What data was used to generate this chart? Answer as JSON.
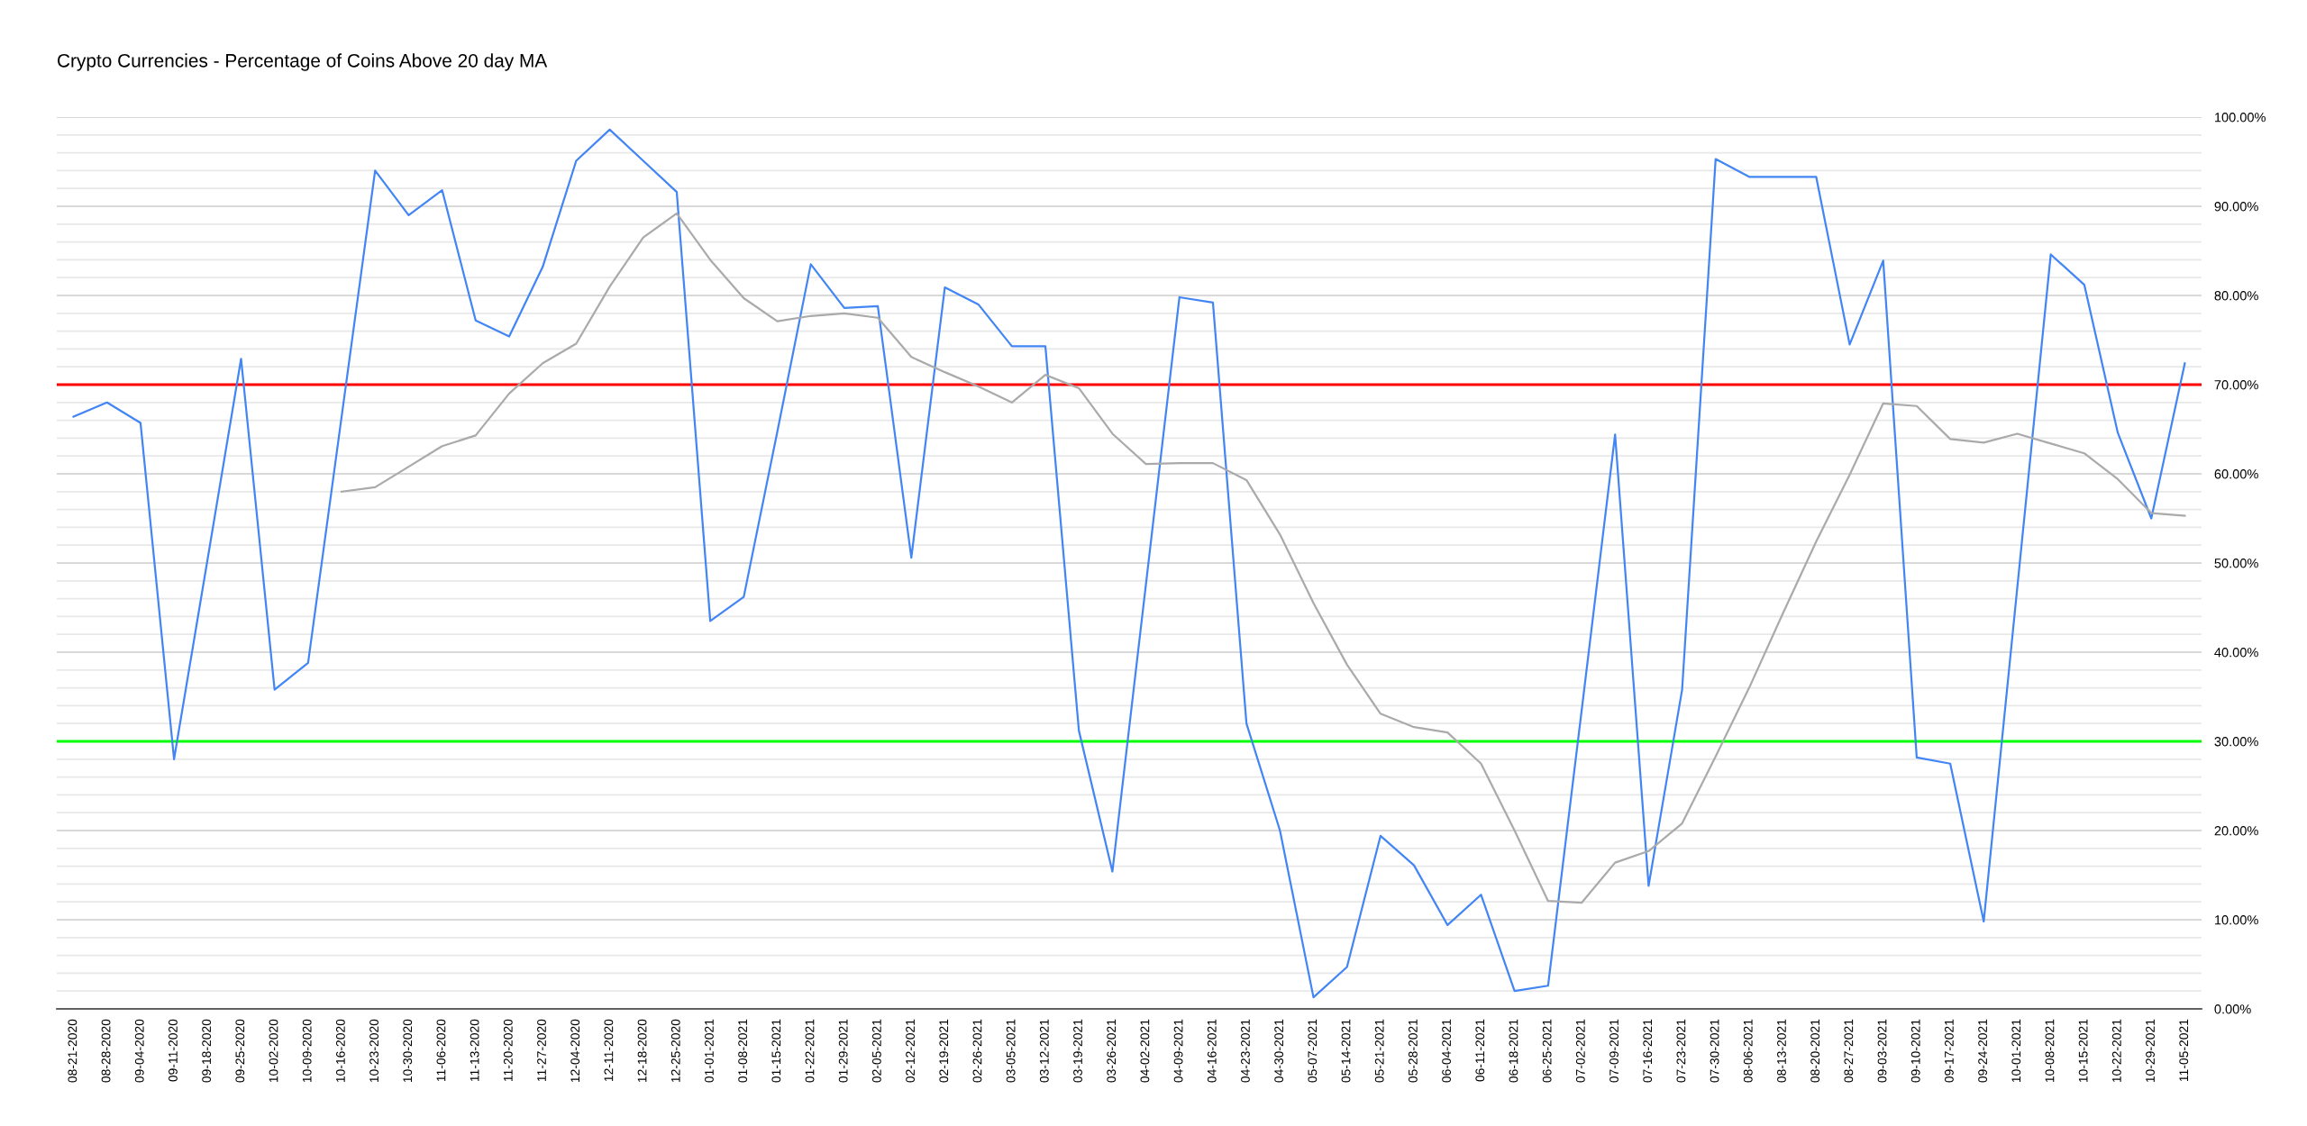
{
  "chart_data": {
    "type": "line",
    "title": "Crypto Currencies - Percentage of Coins Above 20 day MA",
    "categories": [
      "08-21-2020",
      "08-28-2020",
      "09-04-2020",
      "09-11-2020",
      "09-18-2020",
      "09-25-2020",
      "10-02-2020",
      "10-09-2020",
      "10-16-2020",
      "10-23-2020",
      "10-30-2020",
      "11-06-2020",
      "11-13-2020",
      "11-20-2020",
      "11-27-2020",
      "12-04-2020",
      "12-11-2020",
      "12-18-2020",
      "12-25-2020",
      "01-01-2021",
      "01-08-2021",
      "01-15-2021",
      "01-22-2021",
      "01-29-2021",
      "02-05-2021",
      "02-12-2021",
      "02-19-2021",
      "02-26-2021",
      "03-05-2021",
      "03-12-2021",
      "03-19-2021",
      "03-26-2021",
      "04-02-2021",
      "04-09-2021",
      "04-16-2021",
      "04-23-2021",
      "04-30-2021",
      "05-07-2021",
      "05-14-2021",
      "05-21-2021",
      "05-28-2021",
      "06-04-2021",
      "06-11-2021",
      "06-18-2021",
      "06-25-2021",
      "07-02-2021",
      "07-09-2021",
      "07-16-2021",
      "07-23-2021",
      "07-30-2021",
      "08-06-2021",
      "08-13-2021",
      "08-20-2021",
      "08-27-2021",
      "09-03-2021",
      "09-10-2021",
      "09-17-2021",
      "09-24-2021",
      "10-01-2021",
      "10-08-2021",
      "10-15-2021",
      "10-22-2021",
      "10-29-2021",
      "11-05-2021"
    ],
    "series": [
      {
        "color": "#4285f4",
        "values": [
          66.4,
          68.0,
          65.7,
          28.0,
          50.4,
          72.9,
          35.8,
          38.8,
          66.4,
          94.0,
          89.0,
          91.8,
          77.2,
          75.4,
          83.2,
          95.1,
          98.6,
          95.1,
          91.6,
          43.5,
          46.2,
          64.7,
          83.5,
          78.6,
          78.8,
          50.6,
          80.9,
          79.0,
          74.3,
          74.3,
          31.2,
          15.4,
          47.6,
          79.8,
          79.2,
          32.0,
          20.0,
          1.3,
          4.7,
          19.4,
          16.1,
          9.4,
          12.8,
          2.0,
          2.6,
          33.4,
          64.4,
          13.8,
          35.8,
          95.3,
          93.3,
          93.3,
          93.3,
          74.5,
          83.9,
          28.2,
          27.5,
          9.8,
          47.2,
          84.6,
          81.2,
          64.6,
          55.0,
          72.4
        ]
      },
      {
        "color": "#aaaaaa",
        "values": [
          null,
          null,
          null,
          null,
          null,
          null,
          null,
          null,
          58.0,
          58.5,
          60.8,
          63.1,
          64.3,
          69.0,
          72.4,
          74.6,
          81.0,
          86.5,
          89.2,
          84.0,
          79.7,
          77.1,
          77.7,
          78.0,
          77.5,
          73.1,
          71.4,
          69.8,
          68.0,
          71.1,
          69.6,
          64.5,
          61.1,
          61.2,
          61.2,
          59.3,
          53.2,
          45.5,
          38.6,
          33.1,
          31.6,
          31.0,
          27.5,
          20.0,
          12.1,
          11.9,
          16.4,
          17.7,
          20.8,
          28.3,
          36.0,
          44.3,
          52.4,
          59.9,
          67.9,
          67.6,
          63.9,
          63.5,
          64.5,
          63.4,
          62.3,
          59.4,
          55.6,
          55.3
        ]
      }
    ],
    "ylim": [
      0,
      100
    ],
    "yticks": [
      {
        "value": 0,
        "label": "0.00%"
      },
      {
        "value": 2,
        "label": null
      },
      {
        "value": 4,
        "label": null
      },
      {
        "value": 6,
        "label": null
      },
      {
        "value": 8,
        "label": null
      },
      {
        "value": 10,
        "label": "10.00%"
      },
      {
        "value": 12,
        "label": null
      },
      {
        "value": 14,
        "label": null
      },
      {
        "value": 16,
        "label": null
      },
      {
        "value": 18,
        "label": null
      },
      {
        "value": 20,
        "label": "20.00%"
      },
      {
        "value": 22,
        "label": null
      },
      {
        "value": 24,
        "label": null
      },
      {
        "value": 26,
        "label": null
      },
      {
        "value": 28,
        "label": null
      },
      {
        "value": 30,
        "label": "30.00%"
      },
      {
        "value": 32,
        "label": null
      },
      {
        "value": 34,
        "label": null
      },
      {
        "value": 36,
        "label": null
      },
      {
        "value": 38,
        "label": null
      },
      {
        "value": 40,
        "label": "40.00%"
      },
      {
        "value": 42,
        "label": null
      },
      {
        "value": 44,
        "label": null
      },
      {
        "value": 46,
        "label": null
      },
      {
        "value": 48,
        "label": null
      },
      {
        "value": 50,
        "label": "50.00%"
      },
      {
        "value": 52,
        "label": null
      },
      {
        "value": 54,
        "label": null
      },
      {
        "value": 56,
        "label": null
      },
      {
        "value": 58,
        "label": null
      },
      {
        "value": 60,
        "label": "60.00%"
      },
      {
        "value": 62,
        "label": null
      },
      {
        "value": 64,
        "label": null
      },
      {
        "value": 66,
        "label": null
      },
      {
        "value": 68,
        "label": null
      },
      {
        "value": 70,
        "label": "70.00%"
      },
      {
        "value": 72,
        "label": null
      },
      {
        "value": 74,
        "label": null
      },
      {
        "value": 76,
        "label": null
      },
      {
        "value": 78,
        "label": null
      },
      {
        "value": 80,
        "label": "80.00%"
      },
      {
        "value": 82,
        "label": null
      },
      {
        "value": 84,
        "label": null
      },
      {
        "value": 86,
        "label": null
      },
      {
        "value": 88,
        "label": null
      },
      {
        "value": 90,
        "label": "90.00%"
      },
      {
        "value": 92,
        "label": null
      },
      {
        "value": 94,
        "label": null
      },
      {
        "value": 96,
        "label": null
      },
      {
        "value": 98,
        "label": null
      },
      {
        "value": 100,
        "label": "100.00%"
      }
    ],
    "grid": "y",
    "ref_lines": [
      {
        "axis": "y",
        "value": 70,
        "color": "#ff0000"
      },
      {
        "axis": "y",
        "value": 30,
        "color": "#00ff00"
      }
    ]
  }
}
